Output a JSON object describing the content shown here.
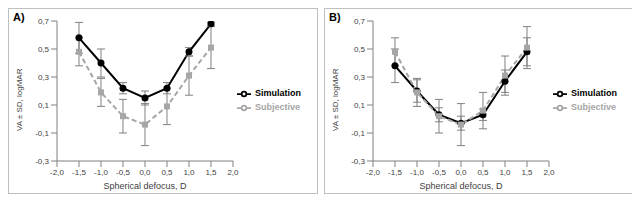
{
  "chart_data": [
    {
      "type": "line",
      "title": "A)",
      "x_label": "Spherical defocus, D",
      "y_label": "VA ± SD, logMAR",
      "x": [
        -1.5,
        -1.0,
        -0.5,
        0.0,
        0.5,
        1.0,
        1.5
      ],
      "series": [
        {
          "name": "Simulation",
          "color": "#000000",
          "marker": "circle",
          "line_style": "solid",
          "values": [
            0.58,
            0.4,
            0.22,
            0.15,
            0.22,
            0.48,
            0.68
          ],
          "sd": [
            0.11,
            0.1,
            0.04,
            0.05,
            0.04,
            0.03,
            0.01
          ]
        },
        {
          "name": "Subjective",
          "color": "#a6a6a6",
          "marker": "square",
          "line_style": "dashed",
          "values": [
            0.48,
            0.19,
            0.02,
            -0.04,
            0.09,
            0.31,
            0.51
          ],
          "sd": [
            0.1,
            0.1,
            0.12,
            0.15,
            0.13,
            0.14,
            0.15
          ]
        }
      ],
      "xlim": [
        -2.0,
        2.0
      ],
      "xticks": [
        {
          "value": -2.0,
          "label": "-2,0"
        },
        {
          "value": -1.5,
          "label": "-1,5"
        },
        {
          "value": -1.0,
          "label": "-1,0"
        },
        {
          "value": -0.5,
          "label": "-0,5"
        },
        {
          "value": 0.0,
          "label": "0,0"
        },
        {
          "value": 0.5,
          "label": "0,5"
        },
        {
          "value": 1.0,
          "label": "1,0"
        },
        {
          "value": 1.5,
          "label": "1,5"
        },
        {
          "value": 2.0,
          "label": "2,0"
        }
      ],
      "ylim": [
        -0.3,
        0.7
      ],
      "yticks": [
        {
          "value": -0.3,
          "label": "-0,3"
        },
        {
          "value": -0.1,
          "label": "-0,1"
        },
        {
          "value": 0.1,
          "label": "0,1"
        },
        {
          "value": 0.3,
          "label": "0,3"
        },
        {
          "value": 0.5,
          "label": "0,5"
        },
        {
          "value": 0.7,
          "label": "0,7"
        }
      ],
      "legend": "right",
      "grid": false
    },
    {
      "type": "line",
      "title": "B)",
      "x_label": "Spherical defocus, D",
      "y_label": "VA ± SD, logMAR",
      "x": [
        -1.5,
        -1.0,
        -0.5,
        0.0,
        0.5,
        1.0,
        1.5
      ],
      "series": [
        {
          "name": "Simulation",
          "color": "#000000",
          "marker": "circle",
          "line_style": "solid",
          "values": [
            0.38,
            0.2,
            0.03,
            -0.03,
            0.03,
            0.27,
            0.48
          ],
          "sd": [
            0.12,
            0.08,
            0.05,
            0.05,
            0.04,
            0.08,
            0.1
          ]
        },
        {
          "name": "Subjective",
          "color": "#a6a6a6",
          "marker": "square",
          "line_style": "dashed",
          "values": [
            0.48,
            0.19,
            0.02,
            -0.04,
            0.06,
            0.31,
            0.51
          ],
          "sd": [
            0.1,
            0.1,
            0.12,
            0.15,
            0.13,
            0.14,
            0.15
          ]
        }
      ],
      "xlim": [
        -2.0,
        2.0
      ],
      "xticks": [
        {
          "value": -2.0,
          "label": "-2,0"
        },
        {
          "value": -1.5,
          "label": "-1,5"
        },
        {
          "value": -1.0,
          "label": "-1,0"
        },
        {
          "value": -0.5,
          "label": "-0,5"
        },
        {
          "value": 0.0,
          "label": "0,0"
        },
        {
          "value": 0.5,
          "label": "0,5"
        },
        {
          "value": 1.0,
          "label": "1,0"
        },
        {
          "value": 1.5,
          "label": "1,5"
        },
        {
          "value": 2.0,
          "label": "2,0"
        }
      ],
      "ylim": [
        -0.3,
        0.7
      ],
      "yticks": [
        {
          "value": -0.3,
          "label": "-0,3"
        },
        {
          "value": -0.1,
          "label": "-0,1"
        },
        {
          "value": 0.1,
          "label": "0,1"
        },
        {
          "value": 0.3,
          "label": "0,3"
        },
        {
          "value": 0.5,
          "label": "0,5"
        },
        {
          "value": 0.7,
          "label": "0,7"
        }
      ],
      "legend": "right",
      "grid": false
    }
  ]
}
